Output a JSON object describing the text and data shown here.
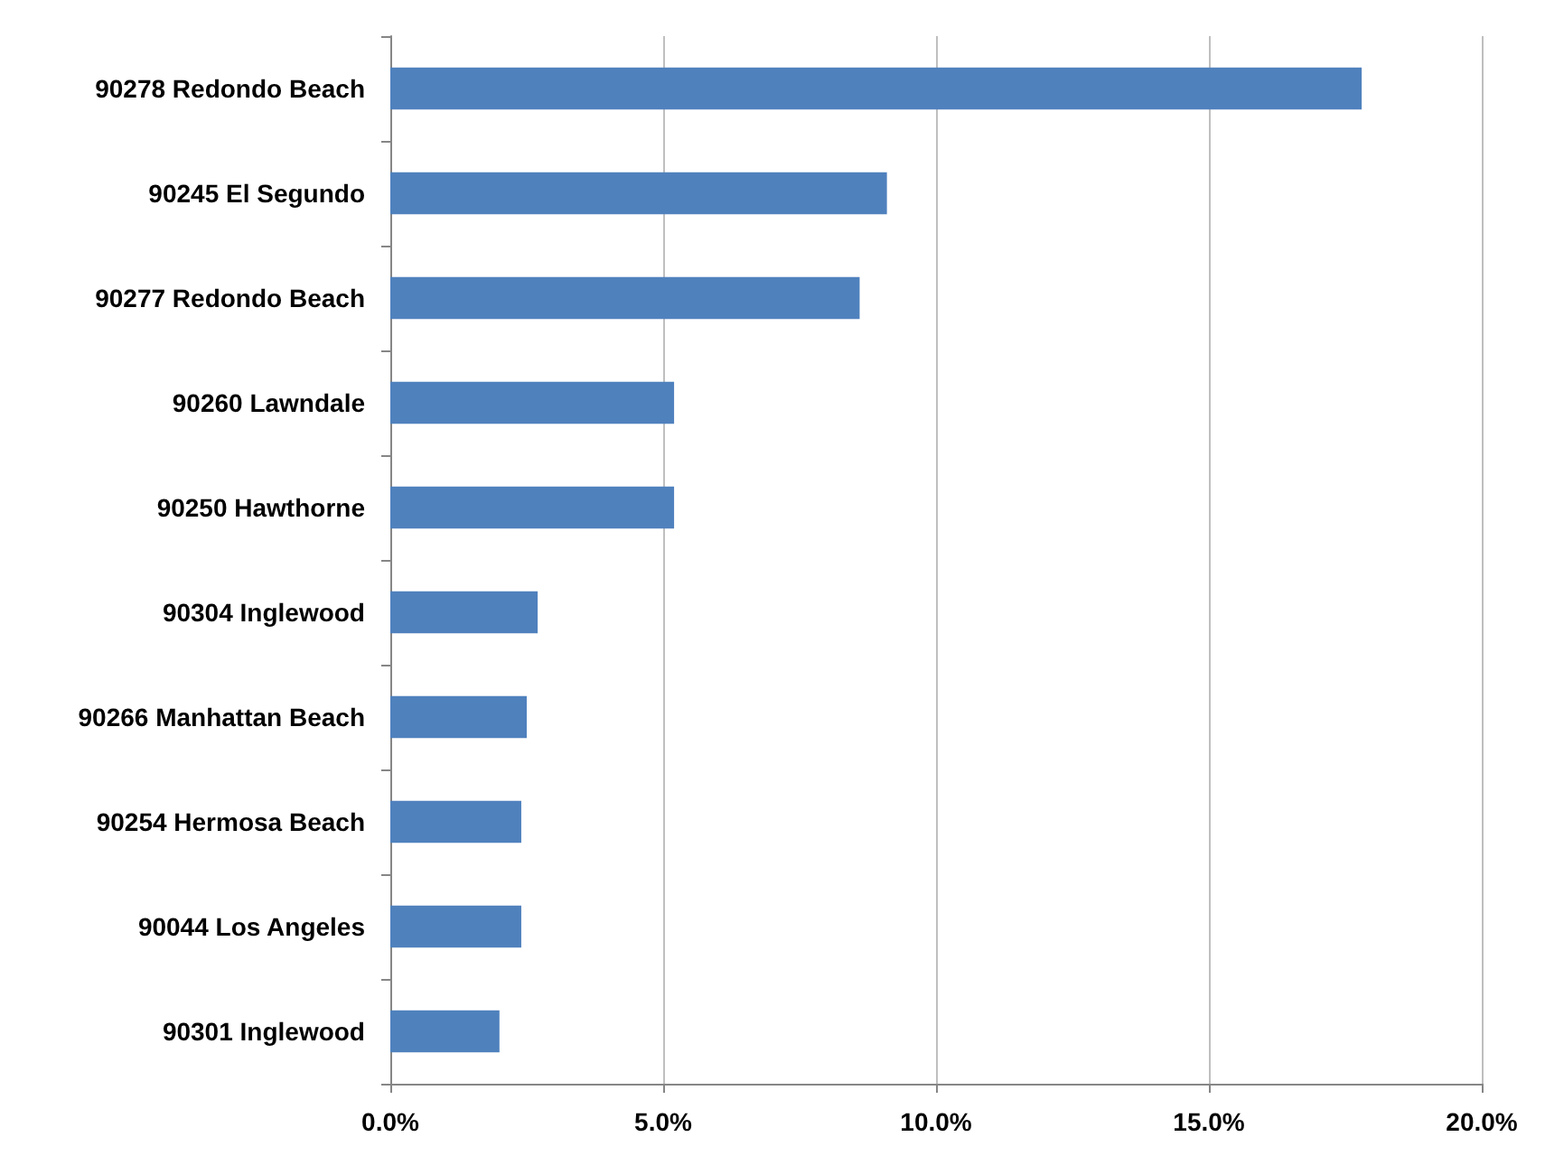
{
  "chart_data": {
    "type": "bar",
    "orientation": "horizontal",
    "categories": [
      "90278 Redondo Beach",
      "90245 El Segundo",
      "90277 Redondo Beach",
      "90260 Lawndale",
      "90250 Hawthorne",
      "90304 Inglewood",
      "90266 Manhattan Beach",
      "90254 Hermosa Beach",
      "90044 Los Angeles",
      "90301 Inglewood"
    ],
    "values": [
      17.8,
      9.1,
      8.6,
      5.2,
      5.2,
      2.7,
      2.5,
      2.4,
      2.4,
      2.0
    ],
    "color": "#4f81bd",
    "xlim": [
      0,
      20
    ],
    "xticks": [
      {
        "value": 0,
        "label": "0.0%"
      },
      {
        "value": 5,
        "label": "5.0%"
      },
      {
        "value": 10,
        "label": "10.0%"
      },
      {
        "value": 15,
        "label": "15.0%"
      },
      {
        "value": 20,
        "label": "20.0%"
      }
    ],
    "grid": "x"
  }
}
